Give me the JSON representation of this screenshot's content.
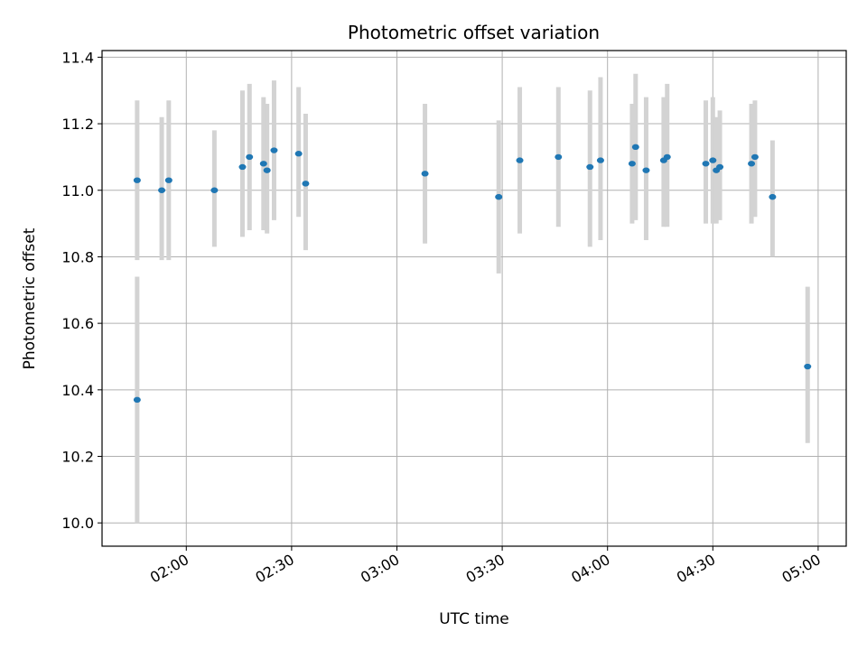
{
  "chart_data": {
    "type": "scatter",
    "title": "Photometric offset variation",
    "xlabel": "UTC time",
    "ylabel": "Photometric offset",
    "x_axis_type": "time",
    "xlim": [
      "01:36",
      "05:08"
    ],
    "ylim": [
      9.93,
      11.42
    ],
    "x_ticks": [
      "02:00",
      "02:30",
      "03:00",
      "03:30",
      "04:00",
      "04:30",
      "05:00"
    ],
    "y_ticks": [
      10.0,
      10.2,
      10.4,
      10.6,
      10.8,
      11.0,
      11.2,
      11.4
    ],
    "y_tick_labels": [
      "10.0",
      "10.2",
      "10.4",
      "10.6",
      "10.8",
      "11.0",
      "11.2",
      "11.4"
    ],
    "grid": true,
    "series": [
      {
        "color": "#1f77b4",
        "errorbar_color": "#d3d3d3",
        "points": [
          {
            "x": "01:46",
            "y": 11.03,
            "ylow": 10.79,
            "yhigh": 11.27
          },
          {
            "x": "01:46",
            "y": 10.37,
            "ylow": 10.0,
            "yhigh": 10.74
          },
          {
            "x": "01:53",
            "y": 11.0,
            "ylow": 10.79,
            "yhigh": 11.22
          },
          {
            "x": "01:55",
            "y": 11.03,
            "ylow": 10.79,
            "yhigh": 11.27
          },
          {
            "x": "02:08",
            "y": 11.0,
            "ylow": 10.83,
            "yhigh": 11.18
          },
          {
            "x": "02:16",
            "y": 11.07,
            "ylow": 10.86,
            "yhigh": 11.3
          },
          {
            "x": "02:18",
            "y": 11.1,
            "ylow": 10.88,
            "yhigh": 11.32
          },
          {
            "x": "02:22",
            "y": 11.08,
            "ylow": 10.88,
            "yhigh": 11.28
          },
          {
            "x": "02:23",
            "y": 11.06,
            "ylow": 10.87,
            "yhigh": 11.26
          },
          {
            "x": "02:25",
            "y": 11.12,
            "ylow": 10.91,
            "yhigh": 11.33
          },
          {
            "x": "02:32",
            "y": 11.11,
            "ylow": 10.92,
            "yhigh": 11.31
          },
          {
            "x": "02:34",
            "y": 11.02,
            "ylow": 10.82,
            "yhigh": 11.23
          },
          {
            "x": "03:08",
            "y": 11.05,
            "ylow": 10.84,
            "yhigh": 11.26
          },
          {
            "x": "03:29",
            "y": 10.98,
            "ylow": 10.75,
            "yhigh": 11.21
          },
          {
            "x": "03:35",
            "y": 11.09,
            "ylow": 10.87,
            "yhigh": 11.31
          },
          {
            "x": "03:46",
            "y": 11.1,
            "ylow": 10.89,
            "yhigh": 11.31
          },
          {
            "x": "03:55",
            "y": 11.07,
            "ylow": 10.83,
            "yhigh": 11.3
          },
          {
            "x": "03:58",
            "y": 11.09,
            "ylow": 10.85,
            "yhigh": 11.34
          },
          {
            "x": "04:07",
            "y": 11.08,
            "ylow": 10.9,
            "yhigh": 11.26
          },
          {
            "x": "04:08",
            "y": 11.13,
            "ylow": 10.91,
            "yhigh": 11.35
          },
          {
            "x": "04:11",
            "y": 11.06,
            "ylow": 10.85,
            "yhigh": 11.28
          },
          {
            "x": "04:16",
            "y": 11.09,
            "ylow": 10.89,
            "yhigh": 11.28
          },
          {
            "x": "04:17",
            "y": 11.1,
            "ylow": 10.89,
            "yhigh": 11.32
          },
          {
            "x": "04:28",
            "y": 11.08,
            "ylow": 10.9,
            "yhigh": 11.27
          },
          {
            "x": "04:30",
            "y": 11.09,
            "ylow": 10.9,
            "yhigh": 11.28
          },
          {
            "x": "04:31",
            "y": 11.06,
            "ylow": 10.9,
            "yhigh": 11.22
          },
          {
            "x": "04:32",
            "y": 11.07,
            "ylow": 10.91,
            "yhigh": 11.24
          },
          {
            "x": "04:41",
            "y": 11.08,
            "ylow": 10.9,
            "yhigh": 11.26
          },
          {
            "x": "04:42",
            "y": 11.1,
            "ylow": 10.92,
            "yhigh": 11.27
          },
          {
            "x": "04:47",
            "y": 10.98,
            "ylow": 10.8,
            "yhigh": 11.15
          },
          {
            "x": "04:57",
            "y": 10.47,
            "ylow": 10.24,
            "yhigh": 10.71
          }
        ]
      }
    ]
  }
}
